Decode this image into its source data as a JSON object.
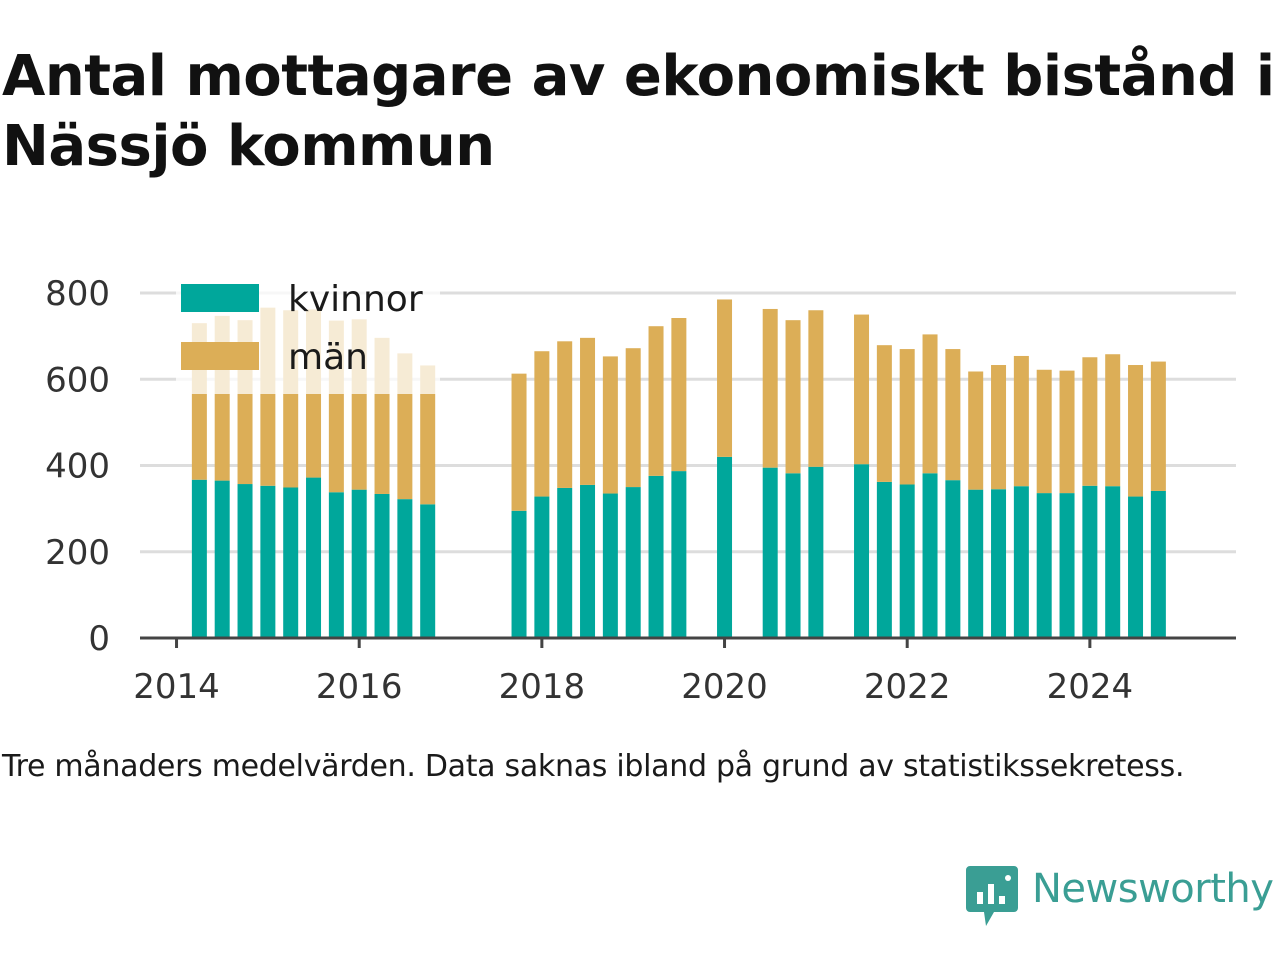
{
  "title": "Antal mottagare av ekonomiskt bistånd i Nässjö kommun",
  "note": "Tre månaders medelvärden. Data saknas ibland på grund av statistikssekretess.",
  "brand": {
    "name": "Newsworthy",
    "logo_icon": "newsworthy-logo-icon"
  },
  "legend": {
    "women_label": "kvinnor",
    "men_label": "män"
  },
  "colors": {
    "women": "#00a79b",
    "men": "#dcae57",
    "grid": "#dddddd",
    "axis": "#444444",
    "brand": "#3a9e94"
  },
  "chart_data": {
    "type": "bar",
    "stacked": true,
    "x_unit": "year",
    "ylim": [
      0,
      800
    ],
    "yticks": [
      0,
      200,
      400,
      600,
      800
    ],
    "xticks": [
      2014,
      2016,
      2018,
      2020,
      2022,
      2024
    ],
    "xlim": [
      2013.6,
      2025.6
    ],
    "grid": true,
    "legend_position": "top-left",
    "series": [
      {
        "name": "kvinnor",
        "values": [
          367,
          365,
          357,
          353,
          349,
          372,
          338,
          344,
          334,
          322,
          310,
          295,
          328,
          348,
          355,
          335,
          350,
          376,
          387,
          420,
          395,
          382,
          397,
          403,
          362,
          356,
          382,
          366,
          344,
          345,
          352,
          336,
          336,
          353,
          352,
          328,
          341
        ]
      },
      {
        "name": "män",
        "values": [
          363,
          382,
          380,
          413,
          411,
          390,
          398,
          395,
          362,
          338,
          322,
          318,
          337,
          340,
          341,
          318,
          322,
          347,
          355,
          365,
          368,
          355,
          363,
          347,
          317,
          314,
          322,
          304,
          274,
          288,
          302,
          286,
          284,
          298,
          306,
          305,
          300
        ]
      }
    ],
    "x": [
      2014.25,
      2014.5,
      2014.75,
      2015.0,
      2015.25,
      2015.5,
      2015.75,
      2016.0,
      2016.25,
      2016.5,
      2016.75,
      2017.75,
      2018.0,
      2018.25,
      2018.5,
      2018.75,
      2019.0,
      2019.25,
      2019.5,
      2020.0,
      2020.5,
      2020.75,
      2021.0,
      2021.5,
      2021.75,
      2022.0,
      2022.25,
      2022.5,
      2022.75,
      2023.0,
      2023.25,
      2023.5,
      2023.75,
      2024.0,
      2024.25,
      2024.5,
      2024.75
    ]
  }
}
